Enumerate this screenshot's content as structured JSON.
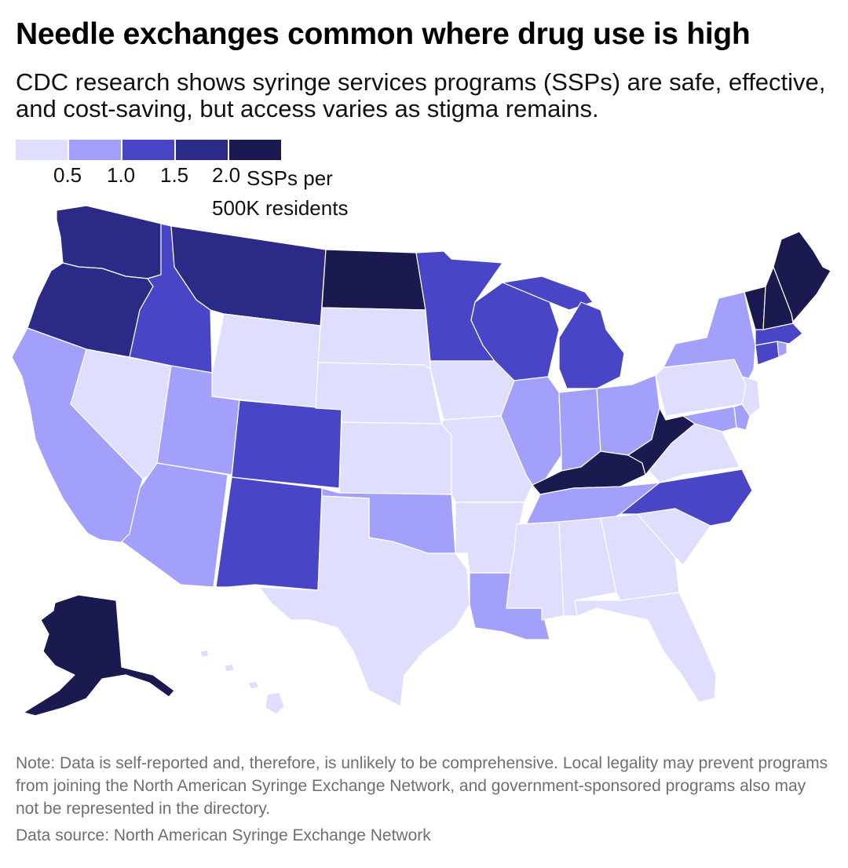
{
  "title": "Needle exchanges common where drug use is high",
  "subtitle": "CDC research shows syringe services programs (SSPs) are safe, effective, and cost-saving, but access varies as stigma remains.",
  "legend": {
    "colors": [
      "#e0defe",
      "#a3a0fb",
      "#4845c6",
      "#2c2a87",
      "#1b1a50"
    ],
    "ticks": [
      "0.5",
      "1.0",
      "1.5",
      "2.0"
    ],
    "unit_line1": "SSPs per",
    "unit_line2": "500K residents"
  },
  "states": [
    {
      "name": "Washington",
      "class": 3
    },
    {
      "name": "Oregon",
      "class": 3
    },
    {
      "name": "California",
      "class": 1
    },
    {
      "name": "Nevada",
      "class": 0
    },
    {
      "name": "Idaho",
      "class": 2
    },
    {
      "name": "Montana",
      "class": 3
    },
    {
      "name": "Wyoming",
      "class": 0
    },
    {
      "name": "Utah",
      "class": 1
    },
    {
      "name": "Arizona",
      "class": 1
    },
    {
      "name": "Colorado",
      "class": 2
    },
    {
      "name": "New Mexico",
      "class": 2
    },
    {
      "name": "North Dakota",
      "class": 4
    },
    {
      "name": "South Dakota",
      "class": 0
    },
    {
      "name": "Nebraska",
      "class": 0
    },
    {
      "name": "Kansas",
      "class": 0
    },
    {
      "name": "Oklahoma",
      "class": 1
    },
    {
      "name": "Texas",
      "class": 0
    },
    {
      "name": "Minnesota",
      "class": 2
    },
    {
      "name": "Iowa",
      "class": 0
    },
    {
      "name": "Missouri",
      "class": 0
    },
    {
      "name": "Arkansas",
      "class": 0
    },
    {
      "name": "Louisiana",
      "class": 1
    },
    {
      "name": "Wisconsin",
      "class": 2
    },
    {
      "name": "Illinois",
      "class": 1
    },
    {
      "name": "Michigan",
      "class": 2
    },
    {
      "name": "Indiana",
      "class": 1
    },
    {
      "name": "Ohio",
      "class": 1
    },
    {
      "name": "Kentucky",
      "class": 4
    },
    {
      "name": "Tennessee",
      "class": 1
    },
    {
      "name": "Mississippi",
      "class": 0
    },
    {
      "name": "Alabama",
      "class": 0
    },
    {
      "name": "Georgia",
      "class": 0
    },
    {
      "name": "Florida",
      "class": 0
    },
    {
      "name": "South Carolina",
      "class": 0
    },
    {
      "name": "North Carolina",
      "class": 2
    },
    {
      "name": "Virginia",
      "class": 0
    },
    {
      "name": "West Virginia",
      "class": 4
    },
    {
      "name": "Pennsylvania",
      "class": 0
    },
    {
      "name": "New York",
      "class": 1
    },
    {
      "name": "New Jersey",
      "class": 0
    },
    {
      "name": "Maryland",
      "class": 1
    },
    {
      "name": "Delaware",
      "class": 1
    },
    {
      "name": "Connecticut",
      "class": 2
    },
    {
      "name": "Rhode Island",
      "class": 1
    },
    {
      "name": "Massachusetts",
      "class": 2
    },
    {
      "name": "Vermont",
      "class": 4
    },
    {
      "name": "New Hampshire",
      "class": 4
    },
    {
      "name": "Maine",
      "class": 4
    },
    {
      "name": "Alaska",
      "class": 4
    },
    {
      "name": "Hawaii",
      "class": 0
    }
  ],
  "note": "Note: Data is self-reported and, therefore, is unlikely to be comprehensive. Local legality may prevent programs from joining the North American Syringe Exchange Network, and government-sponsored programs also may not be represented in the directory.",
  "source": "Data source: North American Syringe Exchange Network"
}
